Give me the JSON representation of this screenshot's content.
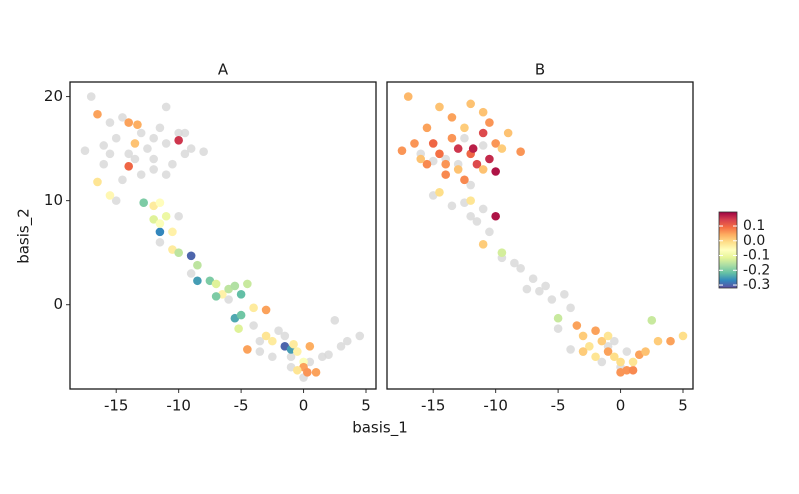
{
  "chart_data": {
    "type": "scatter",
    "xlabel": "basis_1",
    "ylabel": "basis_2",
    "xlim": [
      -18.7,
      5.8
    ],
    "ylim": [
      -8.1,
      21.4
    ],
    "xticks": [
      -15,
      -10,
      -5,
      0,
      5
    ],
    "yticks": [
      0,
      10,
      20
    ],
    "na_color": "#d9d9d9",
    "colorbar": {
      "lim": [
        -0.32,
        0.195
      ],
      "ticks": [
        0.1,
        {
          "value": 0,
          "label": "0.0"
        },
        -0.1,
        -0.2,
        -0.3
      ],
      "palette": [
        "#5E4FA2",
        "#3288BD",
        "#66C2A5",
        "#ABDDA4",
        "#E6F598",
        "#FFFFBF",
        "#FEE08B",
        "#FDAE61",
        "#F46D43",
        "#D53E4F",
        "#9E0142"
      ]
    },
    "facets": [
      {
        "title": "A",
        "points": [
          {
            "x": -17,
            "y": 20,
            "value": null
          },
          {
            "x": -17.5,
            "y": 14.8,
            "value": null
          },
          {
            "x": -16,
            "y": 15.3,
            "value": null
          },
          {
            "x": -15.5,
            "y": 14.5,
            "value": null
          },
          {
            "x": -15,
            "y": 16,
            "value": null
          },
          {
            "x": -14.5,
            "y": 18,
            "value": null
          },
          {
            "x": -14,
            "y": 14.5,
            "value": null
          },
          {
            "x": -13,
            "y": 16.5,
            "value": null
          },
          {
            "x": -12.5,
            "y": 15,
            "value": null
          },
          {
            "x": -12,
            "y": 14,
            "value": null
          },
          {
            "x": -11.5,
            "y": 17,
            "value": null
          },
          {
            "x": -11,
            "y": 19,
            "value": null
          },
          {
            "x": -11,
            "y": 15.5,
            "value": null
          },
          {
            "x": -10.5,
            "y": 13.5,
            "value": null
          },
          {
            "x": -10,
            "y": 16.5,
            "value": null
          },
          {
            "x": -9.5,
            "y": 14.5,
            "value": null
          },
          {
            "x": -9.5,
            "y": 16.5,
            "value": null
          },
          {
            "x": -9,
            "y": 15,
            "value": null
          },
          {
            "x": -8,
            "y": 14.7,
            "value": null
          },
          {
            "x": -13,
            "y": 12.5,
            "value": null
          },
          {
            "x": -12,
            "y": 13,
            "value": null
          },
          {
            "x": -14.5,
            "y": 12,
            "value": null
          },
          {
            "x": -15,
            "y": 10,
            "value": null
          },
          {
            "x": -10,
            "y": 8.5,
            "value": null
          },
          {
            "x": -11.5,
            "y": 6,
            "value": null
          },
          {
            "x": -9,
            "y": 3,
            "value": null
          },
          {
            "x": -6,
            "y": 0.5,
            "value": null
          },
          {
            "x": -4,
            "y": -2,
            "value": null
          },
          {
            "x": -3.5,
            "y": -4.5,
            "value": null
          },
          {
            "x": -2,
            "y": -2.5,
            "value": null
          },
          {
            "x": -2.5,
            "y": -5,
            "value": null
          },
          {
            "x": -1,
            "y": -6,
            "value": null
          },
          {
            "x": 0,
            "y": -7,
            "value": null
          },
          {
            "x": 0.5,
            "y": -5.5,
            "value": null
          },
          {
            "x": 1.5,
            "y": -5,
            "value": null
          },
          {
            "x": 2,
            "y": -4.8,
            "value": null
          },
          {
            "x": 2.5,
            "y": -1.5,
            "value": null
          },
          {
            "x": 3,
            "y": -4,
            "value": null
          },
          {
            "x": 3.5,
            "y": -3.5,
            "value": null
          },
          {
            "x": 4.5,
            "y": -3,
            "value": null
          },
          {
            "x": -1.5,
            "y": -3,
            "value": null
          },
          {
            "x": -1,
            "y": -5,
            "value": null
          },
          {
            "x": -3.5,
            "y": -3.5,
            "value": null
          },
          {
            "x": -16,
            "y": 13.5,
            "value": null
          },
          {
            "x": -13.5,
            "y": 14,
            "value": null
          },
          {
            "x": -12,
            "y": 16,
            "value": null
          },
          {
            "x": -11,
            "y": 12.5,
            "value": null
          },
          {
            "x": -15.5,
            "y": 17.5,
            "value": null
          },
          {
            "x": -16.5,
            "y": 18.3,
            "value": 0.05
          },
          {
            "x": -14,
            "y": 17.5,
            "value": 0.05
          },
          {
            "x": -13.3,
            "y": 17.3,
            "value": 0.04
          },
          {
            "x": -10,
            "y": 15.8,
            "value": 0.15
          },
          {
            "x": -14,
            "y": 13.3,
            "value": 0.1
          },
          {
            "x": -13.5,
            "y": 15.5,
            "value": 0.02
          },
          {
            "x": -16.5,
            "y": 11.8,
            "value": -0.02
          },
          {
            "x": -15.5,
            "y": 10.5,
            "value": -0.05
          },
          {
            "x": -12.8,
            "y": 9.8,
            "value": -0.2
          },
          {
            "x": -12,
            "y": 9.5,
            "value": -0.03
          },
          {
            "x": -11.5,
            "y": 9.8,
            "value": -0.06
          },
          {
            "x": -11.5,
            "y": 7,
            "value": -0.27
          },
          {
            "x": -12,
            "y": 8.2,
            "value": -0.12
          },
          {
            "x": -11,
            "y": 8.5,
            "value": -0.1
          },
          {
            "x": -11.5,
            "y": 7.8,
            "value": -0.07
          },
          {
            "x": -10.5,
            "y": 7,
            "value": -0.04
          },
          {
            "x": -10.5,
            "y": 5.3,
            "value": -0.03
          },
          {
            "x": -10,
            "y": 5,
            "value": -0.15
          },
          {
            "x": -9,
            "y": 4.7,
            "value": -0.3
          },
          {
            "x": -8.5,
            "y": 3.8,
            "value": -0.15
          },
          {
            "x": -8.5,
            "y": 2.3,
            "value": -0.25
          },
          {
            "x": -7.5,
            "y": 2.3,
            "value": -0.2
          },
          {
            "x": -7,
            "y": 2,
            "value": -0.12
          },
          {
            "x": -6.5,
            "y": 1,
            "value": -0.04
          },
          {
            "x": -6,
            "y": 1.5,
            "value": -0.15
          },
          {
            "x": -5.5,
            "y": 1.8,
            "value": -0.16
          },
          {
            "x": -5,
            "y": 1,
            "value": -0.22
          },
          {
            "x": -4.5,
            "y": 2,
            "value": -0.14
          },
          {
            "x": -7,
            "y": 0.8,
            "value": -0.2
          },
          {
            "x": -5.5,
            "y": -1.3,
            "value": -0.24
          },
          {
            "x": -5,
            "y": -1,
            "value": -0.21
          },
          {
            "x": -5.2,
            "y": -2.3,
            "value": -0.12
          },
          {
            "x": -4,
            "y": -0.3,
            "value": -0.03
          },
          {
            "x": -3,
            "y": -0.5,
            "value": 0.05
          },
          {
            "x": -4.5,
            "y": -4.3,
            "value": 0.05
          },
          {
            "x": -3,
            "y": -3,
            "value": -0.02
          },
          {
            "x": -2.5,
            "y": -3.5,
            "value": -0.03
          },
          {
            "x": -1.5,
            "y": -4,
            "value": -0.3
          },
          {
            "x": -1,
            "y": -4.3,
            "value": -0.25
          },
          {
            "x": -0.8,
            "y": -3.8,
            "value": -0.03
          },
          {
            "x": -0.5,
            "y": -4.5,
            "value": -0.04
          },
          {
            "x": 0,
            "y": -5.5,
            "value": -0.07
          },
          {
            "x": 0,
            "y": -6,
            "value": 0.05
          },
          {
            "x": 0.3,
            "y": -6.5,
            "value": 0.06
          },
          {
            "x": 1,
            "y": -6.5,
            "value": 0.05
          },
          {
            "x": 0.5,
            "y": -4,
            "value": 0.04
          },
          {
            "x": -0.5,
            "y": -6.3,
            "value": -0.02
          }
        ]
      },
      {
        "title": "B",
        "points": [
          {
            "x": -15,
            "y": 10.5,
            "value": null
          },
          {
            "x": -13.5,
            "y": 9.5,
            "value": null
          },
          {
            "x": -12.5,
            "y": 9.8,
            "value": null
          },
          {
            "x": -12,
            "y": 8.5,
            "value": null
          },
          {
            "x": -11.5,
            "y": 8,
            "value": null
          },
          {
            "x": -11,
            "y": 9.2,
            "value": null
          },
          {
            "x": -10.5,
            "y": 7,
            "value": null
          },
          {
            "x": -9.5,
            "y": 4.5,
            "value": null
          },
          {
            "x": -8.5,
            "y": 4,
            "value": null
          },
          {
            "x": -8,
            "y": 3.5,
            "value": null
          },
          {
            "x": -7,
            "y": 2.5,
            "value": null
          },
          {
            "x": -7.5,
            "y": 1.5,
            "value": null
          },
          {
            "x": -6.5,
            "y": 1.3,
            "value": null
          },
          {
            "x": -6,
            "y": 1.8,
            "value": null
          },
          {
            "x": -5.5,
            "y": 0.5,
            "value": null
          },
          {
            "x": -4.5,
            "y": 1,
            "value": null
          },
          {
            "x": -4,
            "y": -0.3,
            "value": null
          },
          {
            "x": -5,
            "y": -2.3,
            "value": null
          },
          {
            "x": -4,
            "y": -4.3,
            "value": null
          },
          {
            "x": -3,
            "y": -4.5,
            "value": null
          },
          {
            "x": -1,
            "y": -4,
            "value": null
          },
          {
            "x": -0.5,
            "y": -3.5,
            "value": null
          },
          {
            "x": 0.5,
            "y": -4.5,
            "value": null
          },
          {
            "x": 0,
            "y": -6,
            "value": null
          },
          {
            "x": -1.5,
            "y": -5.5,
            "value": null
          },
          {
            "x": -14,
            "y": 14,
            "value": null
          },
          {
            "x": -12.5,
            "y": 16,
            "value": null
          },
          {
            "x": -11,
            "y": 15.3,
            "value": null
          },
          {
            "x": -16,
            "y": 14.5,
            "value": null
          },
          {
            "x": -15,
            "y": 13.8,
            "value": null
          },
          {
            "x": -13,
            "y": 13.5,
            "value": null
          },
          {
            "x": -12,
            "y": 11.5,
            "value": null
          },
          {
            "x": -17,
            "y": 20,
            "value": 0.03
          },
          {
            "x": -16.5,
            "y": 15.5,
            "value": 0.06
          },
          {
            "x": -15.5,
            "y": 17,
            "value": 0.05
          },
          {
            "x": -15,
            "y": 15.5,
            "value": 0.1
          },
          {
            "x": -14.5,
            "y": 14.5,
            "value": 0.09
          },
          {
            "x": -14,
            "y": 13.5,
            "value": 0.06
          },
          {
            "x": -13.5,
            "y": 16,
            "value": 0.06
          },
          {
            "x": -13,
            "y": 15,
            "value": 0.15
          },
          {
            "x": -12.5,
            "y": 17,
            "value": 0.01
          },
          {
            "x": -12,
            "y": 14.5,
            "value": 0.1
          },
          {
            "x": -11.8,
            "y": 15,
            "value": 0.17
          },
          {
            "x": -11,
            "y": 18.5,
            "value": 0.02
          },
          {
            "x": -11,
            "y": 16.5,
            "value": 0.13
          },
          {
            "x": -10.5,
            "y": 14,
            "value": 0.16
          },
          {
            "x": -10,
            "y": 12.8,
            "value": 0.18
          },
          {
            "x": -10,
            "y": 15.5,
            "value": 0.06
          },
          {
            "x": -9.5,
            "y": 15,
            "value": 0.01
          },
          {
            "x": -9,
            "y": 16.5,
            "value": 0.02
          },
          {
            "x": -8,
            "y": 14.7,
            "value": 0.06
          },
          {
            "x": -15.5,
            "y": 13.5,
            "value": 0.07
          },
          {
            "x": -16,
            "y": 14,
            "value": 0.02
          },
          {
            "x": -17.5,
            "y": 14.8,
            "value": 0.06
          },
          {
            "x": -14,
            "y": 12.5,
            "value": 0.07
          },
          {
            "x": -13,
            "y": 13,
            "value": 0.02
          },
          {
            "x": -12.5,
            "y": 12,
            "value": 0.07
          },
          {
            "x": -11.5,
            "y": 13.5,
            "value": 0.13
          },
          {
            "x": -10.5,
            "y": 17.5,
            "value": 0.06
          },
          {
            "x": -13.5,
            "y": 18,
            "value": 0.05
          },
          {
            "x": -14.5,
            "y": 19,
            "value": 0.02
          },
          {
            "x": -12,
            "y": 19.3,
            "value": 0.02
          },
          {
            "x": -11,
            "y": 13,
            "value": 0.02
          },
          {
            "x": -14.5,
            "y": 10.8,
            "value": -0.01
          },
          {
            "x": -12,
            "y": 10,
            "value": -0.02
          },
          {
            "x": -11,
            "y": 5.8,
            "value": 0.01
          },
          {
            "x": -10,
            "y": 8.5,
            "value": 0.18
          },
          {
            "x": -9.5,
            "y": 5,
            "value": -0.13
          },
          {
            "x": -5,
            "y": -1.3,
            "value": -0.14
          },
          {
            "x": -3.5,
            "y": -2,
            "value": 0.05
          },
          {
            "x": -3,
            "y": -3,
            "value": 0.01
          },
          {
            "x": -2,
            "y": -2.5,
            "value": 0.05
          },
          {
            "x": -2.5,
            "y": -4,
            "value": -0.02
          },
          {
            "x": -1.5,
            "y": -3.5,
            "value": 0.01
          },
          {
            "x": -1,
            "y": -4.5,
            "value": 0.05
          },
          {
            "x": -2,
            "y": -5,
            "value": -0.02
          },
          {
            "x": 0,
            "y": -5.5,
            "value": -0.01
          },
          {
            "x": 0.5,
            "y": -6.3,
            "value": 0.06
          },
          {
            "x": 1,
            "y": -6.3,
            "value": 0.07
          },
          {
            "x": 0,
            "y": -6.5,
            "value": 0.06
          },
          {
            "x": 1.5,
            "y": -4.8,
            "value": 0.05
          },
          {
            "x": 2,
            "y": -4.5,
            "value": 0.02
          },
          {
            "x": 2.5,
            "y": -1.5,
            "value": -0.14
          },
          {
            "x": 3,
            "y": -3.5,
            "value": 0.01
          },
          {
            "x": 4,
            "y": -3.5,
            "value": 0.05
          },
          {
            "x": 5,
            "y": -3,
            "value": -0.01
          },
          {
            "x": -1,
            "y": -3,
            "value": -0.02
          },
          {
            "x": -0.5,
            "y": -5,
            "value": -0.01
          },
          {
            "x": 1,
            "y": -5.5,
            "value": -0.02
          },
          {
            "x": -3,
            "y": -4.5,
            "value": 0.01
          }
        ]
      }
    ]
  }
}
